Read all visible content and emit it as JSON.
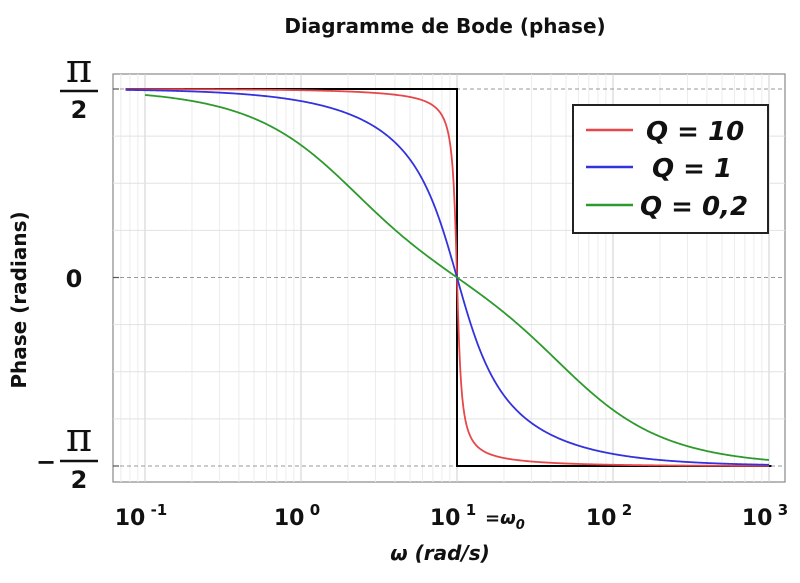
{
  "chart_data": {
    "type": "line",
    "title": "Diagramme de Bode (phase)",
    "xlabel": "ω (rad/s)",
    "ylabel": "Phase (radians)",
    "x_scale": "log",
    "xlim": [
      0.07,
      1100
    ],
    "ylim_label": [
      "−π/2",
      "π/2"
    ],
    "x_ticks": [
      {
        "base": "10",
        "exp": "-1",
        "value": 0.1
      },
      {
        "base": "10",
        "exp": "0",
        "value": 1
      },
      {
        "base": "10",
        "exp": "1",
        "value": 10
      },
      {
        "base": "10",
        "exp": "2",
        "value": 100
      },
      {
        "base": "10",
        "exp": "3",
        "value": 1000
      }
    ],
    "y_ticks": {
      "top": {
        "num": "π",
        "den": "2"
      },
      "zero": "0",
      "bottom": {
        "sign": "−",
        "num": "π",
        "den": "2"
      }
    },
    "omega0": 10,
    "omega0_annotation": "=ω",
    "omega0_sub": "0",
    "grid": true,
    "legend_position": "top-right",
    "series": [
      {
        "name": "Q = 10",
        "Q": 10,
        "color": "#e8474a"
      },
      {
        "name": "Q = 1",
        "Q": 1,
        "color": "#3333dd"
      },
      {
        "name": "Q = 0,2",
        "Q": 0.2,
        "color": "#2e9a2e"
      }
    ],
    "asymptote_color": "#000000"
  }
}
